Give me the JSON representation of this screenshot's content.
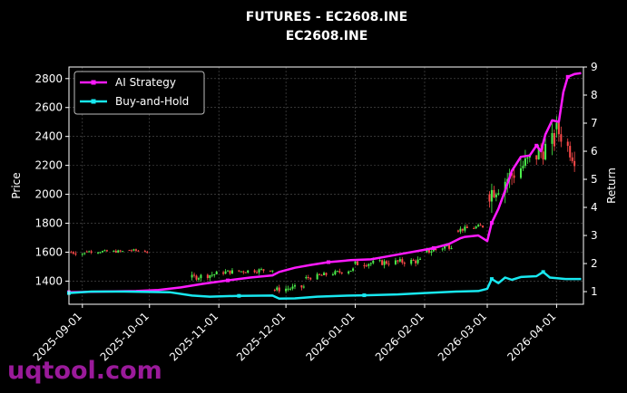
{
  "chart_data": {
    "type": "candlestick+line",
    "title": "FUTURES - EC2608.INE",
    "subtitle": "EC2608.INE",
    "ylabel_left": "Price",
    "ylabel_right": "Return",
    "ylim_left": [
      1240,
      2880
    ],
    "ylim_right": [
      0.55,
      9.0
    ],
    "yticks_left": [
      1400,
      1600,
      1800,
      2000,
      2200,
      2400,
      2600,
      2800
    ],
    "yticks_right": [
      1,
      2,
      3,
      4,
      5,
      6,
      7,
      8,
      9
    ],
    "xlim": [
      "2025-08-26",
      "2026-04-13"
    ],
    "xticks": [
      "2025-09-01",
      "2025-10-01",
      "2025-11-01",
      "2025-12-01",
      "2026-01-01",
      "2026-02-01",
      "2026-03-01",
      "2026-04-01"
    ],
    "grid": true,
    "legend_position": "top-left",
    "up_color": "#4cf04c",
    "down_color": "#ff4a4a",
    "series": [
      {
        "name": "AI Strategy",
        "color": "#ff1aff",
        "axis": "right",
        "points": [
          [
            "2025-08-26",
            0.98
          ],
          [
            "2025-09-10",
            1.0
          ],
          [
            "2025-09-25",
            1.02
          ],
          [
            "2025-10-05",
            1.06
          ],
          [
            "2025-10-15",
            1.15
          ],
          [
            "2025-10-25",
            1.28
          ],
          [
            "2025-11-05",
            1.4
          ],
          [
            "2025-11-15",
            1.5
          ],
          [
            "2025-11-25",
            1.58
          ],
          [
            "2025-11-28",
            1.7
          ],
          [
            "2025-12-05",
            1.85
          ],
          [
            "2025-12-12",
            1.95
          ],
          [
            "2025-12-20",
            2.05
          ],
          [
            "2025-12-30",
            2.12
          ],
          [
            "2026-01-08",
            2.15
          ],
          [
            "2026-01-15",
            2.25
          ],
          [
            "2026-01-22",
            2.35
          ],
          [
            "2026-01-29",
            2.45
          ],
          [
            "2026-02-05",
            2.55
          ],
          [
            "2026-02-12",
            2.7
          ],
          [
            "2026-02-17",
            2.9
          ],
          [
            "2026-02-19",
            2.95
          ],
          [
            "2026-02-25",
            3.0
          ],
          [
            "2026-03-01",
            2.8
          ],
          [
            "2026-03-03",
            3.45
          ],
          [
            "2026-03-06",
            3.95
          ],
          [
            "2026-03-09",
            4.6
          ],
          [
            "2026-03-12",
            5.3
          ],
          [
            "2026-03-16",
            5.8
          ],
          [
            "2026-03-20",
            5.85
          ],
          [
            "2026-03-23",
            6.2
          ],
          [
            "2026-03-25",
            6.0
          ],
          [
            "2026-03-27",
            6.6
          ],
          [
            "2026-03-30",
            7.1
          ],
          [
            "2026-04-02",
            7.05
          ],
          [
            "2026-04-04",
            8.1
          ],
          [
            "2026-04-06",
            8.65
          ],
          [
            "2026-04-09",
            8.75
          ],
          [
            "2026-04-12",
            8.78
          ]
        ]
      },
      {
        "name": "Buy-and-Hold",
        "color": "#18e8f0",
        "axis": "right",
        "points": [
          [
            "2025-08-26",
            0.95
          ],
          [
            "2025-09-05",
            1.0
          ],
          [
            "2025-09-20",
            1.0
          ],
          [
            "2025-10-10",
            0.98
          ],
          [
            "2025-10-20",
            0.86
          ],
          [
            "2025-10-28",
            0.82
          ],
          [
            "2025-11-10",
            0.85
          ],
          [
            "2025-11-25",
            0.86
          ],
          [
            "2025-11-28",
            0.75
          ],
          [
            "2025-12-05",
            0.76
          ],
          [
            "2025-12-15",
            0.82
          ],
          [
            "2025-12-25",
            0.85
          ],
          [
            "2026-01-05",
            0.87
          ],
          [
            "2026-01-20",
            0.9
          ],
          [
            "2026-02-01",
            0.95
          ],
          [
            "2026-02-15",
            1.0
          ],
          [
            "2026-02-25",
            1.02
          ],
          [
            "2026-03-01",
            1.1
          ],
          [
            "2026-03-03",
            1.45
          ],
          [
            "2026-03-06",
            1.3
          ],
          [
            "2026-03-09",
            1.5
          ],
          [
            "2026-03-12",
            1.42
          ],
          [
            "2026-03-16",
            1.52
          ],
          [
            "2026-03-23",
            1.55
          ],
          [
            "2026-03-26",
            1.7
          ],
          [
            "2026-03-29",
            1.5
          ],
          [
            "2026-04-05",
            1.45
          ],
          [
            "2026-04-12",
            1.45
          ]
        ]
      }
    ]
  },
  "legend": {
    "ai_label": "AI Strategy",
    "bh_label": "Buy-and-Hold"
  },
  "watermark": "uqtool.com"
}
